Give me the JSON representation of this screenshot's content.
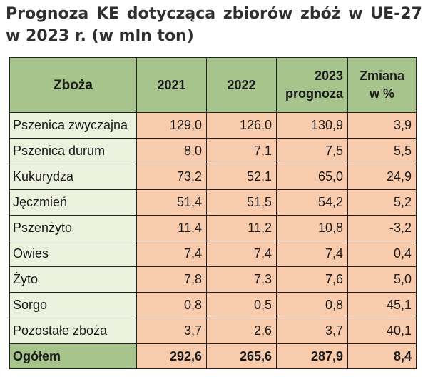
{
  "title": {
    "line1": [
      "Prognoza",
      "KE",
      "dotycząca",
      "zbiorów",
      "zbóż",
      "w",
      "UE-27"
    ],
    "line2": "w 2023 r. (w mln ton)"
  },
  "table": {
    "headers": {
      "crop": "Zboża",
      "y2021": "2021",
      "y2022": "2022",
      "y2023_line1": "2023",
      "y2023_line2": "prognoza",
      "change_line1": "Zmiana",
      "change_line2": "w %"
    },
    "rows": [
      {
        "name": "Pszenica zwyczajna",
        "v2021": "129,0",
        "v2022": "126,0",
        "v2023": "130,9",
        "change": "3,9"
      },
      {
        "name": "Pszenica durum",
        "v2021": "8,0",
        "v2022": "7,1",
        "v2023": "7,5",
        "change": "5,5"
      },
      {
        "name": "Kukurydza",
        "v2021": "73,2",
        "v2022": "52,1",
        "v2023": "65,0",
        "change": "24,9"
      },
      {
        "name": "Jęczmień",
        "v2021": "51,4",
        "v2022": "51,5",
        "v2023": "54,2",
        "change": "5,2"
      },
      {
        "name": "Pszenżyto",
        "v2021": "11,4",
        "v2022": "11,2",
        "v2023": "10,8",
        "change": "-3,2"
      },
      {
        "name": "Owies",
        "v2021": "7,4",
        "v2022": "7,4",
        "v2023": "7,4",
        "change": "0,4"
      },
      {
        "name": "Żyto",
        "v2021": "7,8",
        "v2022": "7,3",
        "v2023": "7,6",
        "change": "5,0"
      },
      {
        "name": "Sorgo",
        "v2021": "0,8",
        "v2022": "0,5",
        "v2023": "0,8",
        "change": "45,1"
      },
      {
        "name": "Pozostałe zboża",
        "v2021": "3,7",
        "v2022": "2,6",
        "v2023": "3,7",
        "change": "40,1"
      }
    ],
    "total": {
      "name": "Ogółem",
      "v2021": "292,6",
      "v2022": "265,6",
      "v2023": "287,9",
      "change": "8,4"
    }
  },
  "colors": {
    "header_bg": "#a6c48c",
    "name_cell_bg": "#ebf1dd",
    "value_cell_bg": "#f8cbad",
    "border": "#222222"
  }
}
